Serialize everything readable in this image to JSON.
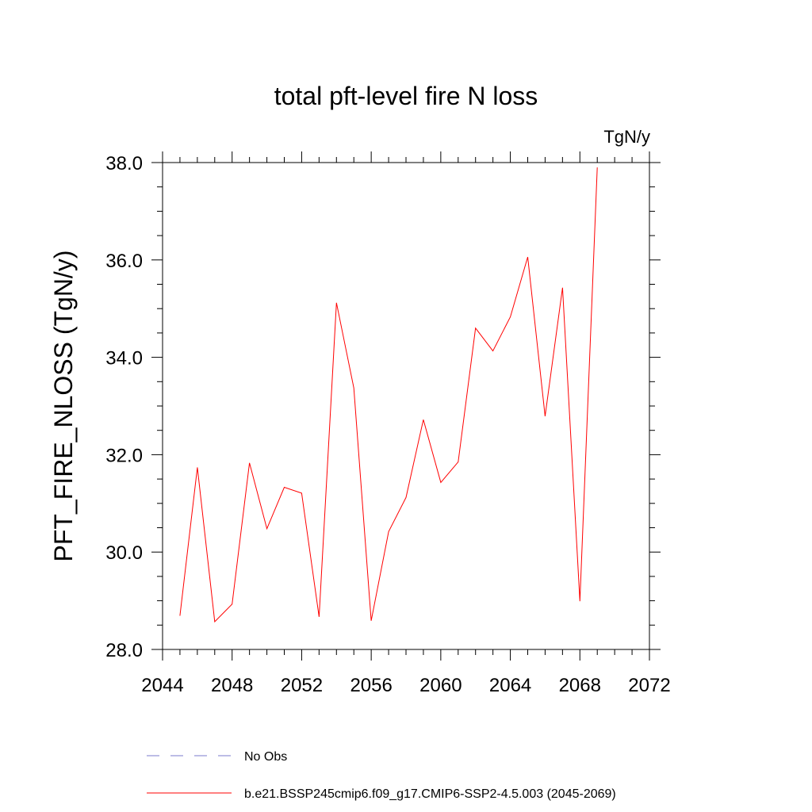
{
  "chart_data": {
    "type": "line",
    "title": "total pft-level fire N loss",
    "units": "TgN/y",
    "xlabel": "",
    "ylabel": "PFT_FIRE_NLOSS  (TgN/y)",
    "xlim": [
      2044,
      2072
    ],
    "ylim": [
      28.0,
      38.0
    ],
    "xticks": [
      "2044",
      "2048",
      "2052",
      "2056",
      "2060",
      "2064",
      "2068",
      "2072"
    ],
    "yticks": [
      "28.0",
      "30.0",
      "32.0",
      "34.0",
      "36.0",
      "38.0"
    ],
    "grid": false,
    "series": [
      {
        "name": "b.e21.BSSP245cmip6.f09_g17.CMIP6-SSP2-4.5.003 (2045-2069)",
        "color": "#ff0000",
        "x": [
          2045,
          2046,
          2047,
          2048,
          2049,
          2050,
          2051,
          2052,
          2053,
          2054,
          2055,
          2056,
          2057,
          2058,
          2059,
          2060,
          2061,
          2062,
          2063,
          2064,
          2065,
          2066,
          2067,
          2068,
          2069
        ],
        "y": [
          28.69,
          31.74,
          28.57,
          28.93,
          31.83,
          30.48,
          31.33,
          31.21,
          28.67,
          35.12,
          33.37,
          28.59,
          30.42,
          31.12,
          32.72,
          31.43,
          31.85,
          34.6,
          34.13,
          34.83,
          36.06,
          32.79,
          35.43,
          28.99,
          37.9
        ]
      }
    ],
    "legend": {
      "position": "bottom-left",
      "entries": [
        {
          "label": "No Obs",
          "style": "dashed",
          "color": "#7b7bcc"
        },
        {
          "label": "b.e21.BSSP245cmip6.f09_g17.CMIP6-SSP2-4.5.003 (2045-2069)",
          "style": "solid",
          "color": "#ff0000"
        }
      ]
    }
  }
}
